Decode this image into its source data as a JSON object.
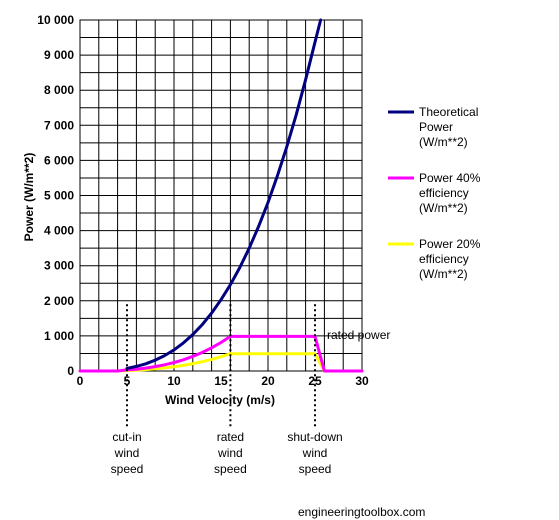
{
  "chart_data": {
    "type": "line",
    "xlabel": "Wind Velocity (m/s)",
    "ylabel": "Power (W/m**2)",
    "xlim": [
      0,
      30
    ],
    "ylim": [
      0,
      10000
    ],
    "x_ticks": [
      "0",
      "5",
      "10",
      "15",
      "20",
      "25",
      "30"
    ],
    "y_ticks": [
      "0",
      "1 000",
      "2 000",
      "3 000",
      "4 000",
      "5 000",
      "6 000",
      "7 000",
      "8 000",
      "9 000",
      "10 000"
    ],
    "grid": true,
    "legend_position": "right",
    "series": [
      {
        "name": "Theoretical Power (W/m**2)",
        "legend_lines": [
          "Theoretical",
          "Power",
          "(W/m**2)"
        ],
        "color": "#000080",
        "points": [
          [
            5,
            75
          ],
          [
            6,
            130
          ],
          [
            7,
            205
          ],
          [
            8,
            310
          ],
          [
            9,
            440
          ],
          [
            10,
            600
          ],
          [
            11,
            800
          ],
          [
            12,
            1040
          ],
          [
            13,
            1320
          ],
          [
            14,
            1650
          ],
          [
            15,
            2030
          ],
          [
            16,
            2460
          ],
          [
            17,
            2950
          ],
          [
            18,
            3500
          ],
          [
            19,
            4120
          ],
          [
            20,
            4800
          ],
          [
            21,
            5560
          ],
          [
            22,
            6390
          ],
          [
            23,
            7300
          ],
          [
            24,
            8300
          ],
          [
            25,
            9370
          ],
          [
            25.6,
            10000
          ]
        ]
      },
      {
        "name": "Power 40% efficiency (W/m**2)",
        "legend_lines": [
          "Power 40%",
          "efficiency",
          "(W/m**2)"
        ],
        "color": "#ff00ff",
        "points": [
          [
            0,
            0
          ],
          [
            4,
            0
          ],
          [
            5,
            30
          ],
          [
            6,
            52
          ],
          [
            7,
            82
          ],
          [
            8,
            124
          ],
          [
            9,
            176
          ],
          [
            10,
            240
          ],
          [
            11,
            320
          ],
          [
            12,
            416
          ],
          [
            13,
            528
          ],
          [
            14,
            660
          ],
          [
            15,
            812
          ],
          [
            16,
            985
          ],
          [
            17,
            985
          ],
          [
            20,
            985
          ],
          [
            24,
            985
          ],
          [
            25,
            985
          ],
          [
            26,
            0
          ],
          [
            30,
            0
          ]
        ]
      },
      {
        "name": "Power 20% efficiency (W/m**2)",
        "legend_lines": [
          "Power 20%",
          "efficiency",
          "(W/m**2)"
        ],
        "color": "#ffff00",
        "points": [
          [
            0,
            0
          ],
          [
            4,
            0
          ],
          [
            5,
            15
          ],
          [
            6,
            26
          ],
          [
            7,
            41
          ],
          [
            8,
            62
          ],
          [
            9,
            88
          ],
          [
            10,
            120
          ],
          [
            11,
            160
          ],
          [
            12,
            208
          ],
          [
            13,
            264
          ],
          [
            14,
            330
          ],
          [
            15,
            406
          ],
          [
            16,
            492
          ],
          [
            20,
            492
          ],
          [
            25,
            492
          ],
          [
            26,
            0
          ],
          [
            30,
            0
          ]
        ]
      }
    ],
    "annotations": [
      {
        "x": 5,
        "y_top": 1900,
        "lines": [
          "cut-in",
          "wind",
          "speed"
        ]
      },
      {
        "x": 16,
        "y_top": 1900,
        "lines": [
          "rated",
          "wind",
          "speed"
        ]
      },
      {
        "x": 25,
        "y_top": 1900,
        "lines": [
          "shut-down",
          "wind",
          "speed"
        ]
      }
    ],
    "rated_power_label": "rated power"
  },
  "watermark": "engineeringtoolbox.com"
}
